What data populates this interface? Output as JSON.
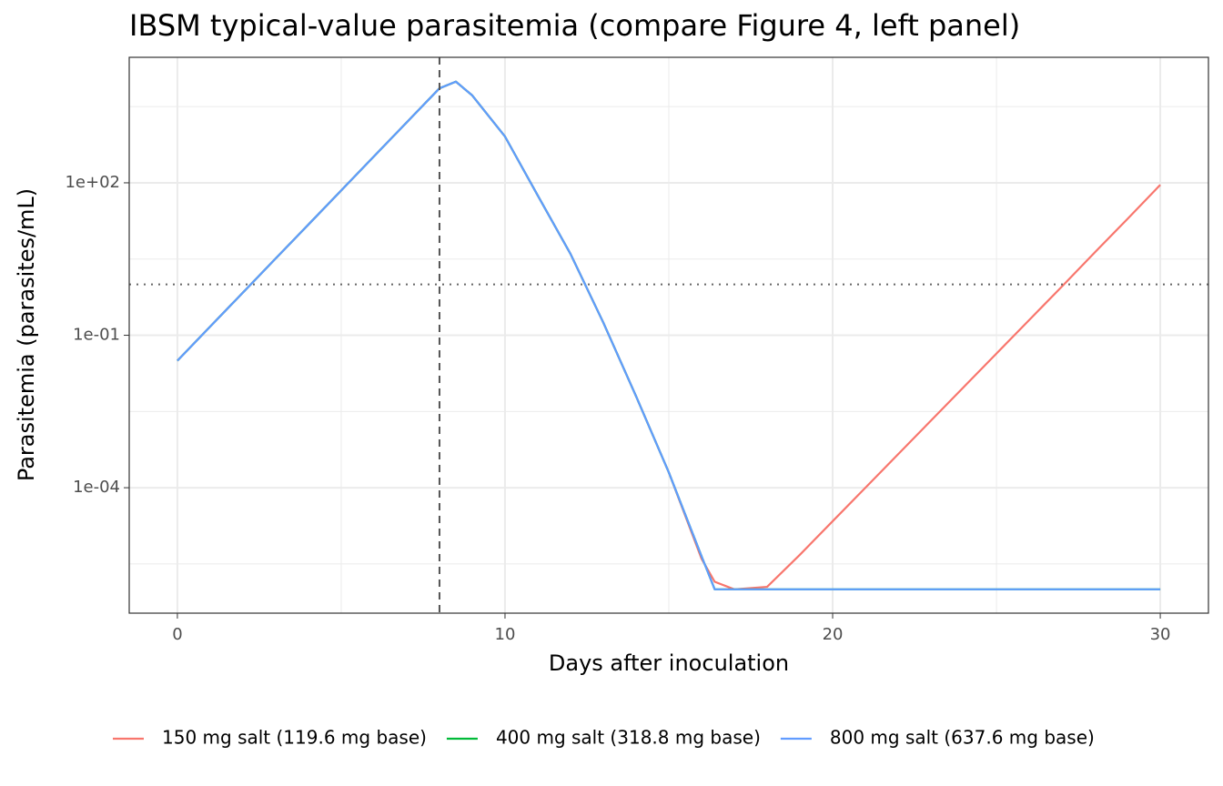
{
  "chart_data": {
    "type": "line",
    "title": "IBSM typical-value parasitemia (compare Figure 4, left panel)",
    "x_label": "Days after inoculation",
    "y_label": "Parasitemia (parasites/mL)",
    "x": [
      0,
      1,
      2,
      3,
      4,
      5,
      6,
      7,
      8,
      8.5,
      9,
      10,
      11,
      12,
      13,
      14,
      15,
      16,
      16.4,
      17,
      18,
      19,
      20,
      21,
      22,
      23,
      24,
      25,
      26,
      27,
      28,
      29,
      30
    ],
    "series": [
      {
        "name": "150 mg salt (119.6 mg base)",
        "color": "#F8766D",
        "values": [
          0.0316,
          0.148,
          0.692,
          3.24,
          15.1,
          70.8,
          331,
          1549,
          7244,
          9800,
          5248,
          813,
          56.2,
          3.98,
          0.178,
          0.00631,
          0.0002,
          3.98e-06,
          1.41e-06,
          1e-06,
          1.12e-06,
          4.79e-06,
          2.19e-05,
          0.0001,
          0.000457,
          0.00209,
          0.00955,
          0.0437,
          0.2,
          0.912,
          4.27,
          19.5,
          91.2
        ]
      },
      {
        "name": "400 mg salt (318.8 mg base)",
        "color": "#00BA38",
        "values": [
          0.0316,
          0.148,
          0.692,
          3.24,
          15.1,
          70.8,
          331,
          1549,
          7244,
          9800,
          5248,
          813,
          56.2,
          3.98,
          0.178,
          0.00631,
          0.0002,
          4.47e-06,
          1e-06,
          1e-06,
          1e-06,
          1e-06,
          1e-06,
          1e-06,
          1e-06,
          1e-06,
          1e-06,
          1e-06,
          1e-06,
          1e-06,
          1e-06,
          1e-06,
          1e-06
        ]
      },
      {
        "name": "800 mg salt (637.6 mg base)",
        "color": "#619CFF",
        "values": [
          0.0316,
          0.148,
          0.692,
          3.24,
          15.1,
          70.8,
          331,
          1549,
          7244,
          9800,
          5248,
          813,
          56.2,
          3.98,
          0.178,
          0.00631,
          0.0002,
          4.47e-06,
          1e-06,
          1e-06,
          1e-06,
          1e-06,
          1e-06,
          1e-06,
          1e-06,
          1e-06,
          1e-06,
          1e-06,
          1e-06,
          1e-06,
          1e-06,
          1e-06,
          1e-06
        ]
      }
    ],
    "xlim": [
      -1.47,
      31.47
    ],
    "xticks": [
      0,
      10,
      20,
      30
    ],
    "x_minor_ticks": [
      5,
      15,
      25
    ],
    "ylim": [
      3.4e-07,
      29500
    ],
    "y_log": true,
    "yticks": [
      {
        "value": 100,
        "label": "1e+02"
      },
      {
        "value": 0.1,
        "label": "1e-01"
      },
      {
        "value": 0.0001,
        "label": "1e-04"
      }
    ],
    "y_minor_ticks": [
      3162,
      3.162,
      0.003162,
      3.162e-06
    ],
    "vline": 8,
    "hline": 1,
    "grid": true,
    "legend": "bottom"
  }
}
